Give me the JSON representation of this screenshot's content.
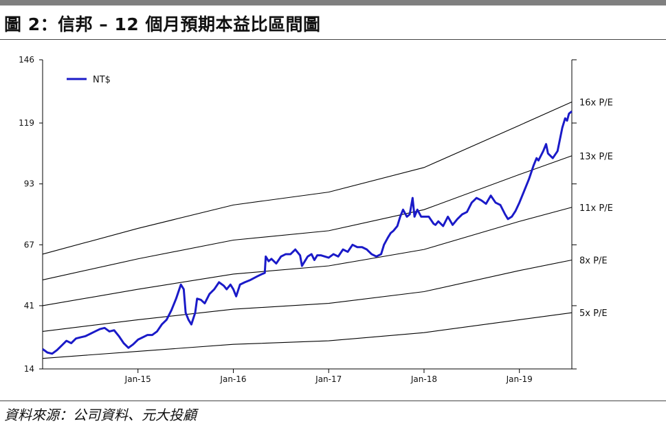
{
  "header": {
    "title": "圖 2：信邦 – 12 個月預期本益比區間圖"
  },
  "footer": {
    "source": "資料來源：公司資料、元大投顧"
  },
  "colors": {
    "series_line": "#1a1ac8",
    "band_line": "#000000",
    "top_bar": "#7f7f7f"
  },
  "chart_data": {
    "type": "line",
    "ylim": [
      14,
      146
    ],
    "yticks": [
      "146",
      "119",
      "93",
      "67",
      "41",
      "14"
    ],
    "xticks": [
      {
        "label": "Jan-15",
        "t": 2015.0
      },
      {
        "label": "Jan-16",
        "t": 2016.0
      },
      {
        "label": "Jan-17",
        "t": 2017.0
      },
      {
        "label": "Jan-18",
        "t": 2018.0
      },
      {
        "label": "Jan-19",
        "t": 2019.0
      }
    ],
    "xlim": [
      2014.0,
      2019.55
    ],
    "legend": {
      "label": "NT$",
      "placement": "top-left"
    },
    "series": [
      {
        "name": "NT$",
        "points": [
          [
            2014.0,
            22.5
          ],
          [
            2014.05,
            21.0
          ],
          [
            2014.1,
            20.5
          ],
          [
            2014.15,
            22.0
          ],
          [
            2014.2,
            24.0
          ],
          [
            2014.25,
            26.0
          ],
          [
            2014.3,
            25.0
          ],
          [
            2014.35,
            27.0
          ],
          [
            2014.4,
            27.5
          ],
          [
            2014.45,
            28.0
          ],
          [
            2014.5,
            29.0
          ],
          [
            2014.55,
            30.0
          ],
          [
            2014.6,
            31.0
          ],
          [
            2014.65,
            31.5
          ],
          [
            2014.7,
            30.0
          ],
          [
            2014.75,
            30.5
          ],
          [
            2014.8,
            28.0
          ],
          [
            2014.85,
            25.0
          ],
          [
            2014.9,
            23.0
          ],
          [
            2014.95,
            24.5
          ],
          [
            2015.0,
            26.5
          ],
          [
            2015.05,
            27.5
          ],
          [
            2015.1,
            28.5
          ],
          [
            2015.15,
            28.5
          ],
          [
            2015.2,
            30.0
          ],
          [
            2015.25,
            33.0
          ],
          [
            2015.3,
            35.0
          ],
          [
            2015.35,
            39.0
          ],
          [
            2015.4,
            44.0
          ],
          [
            2015.45,
            50.0
          ],
          [
            2015.48,
            48.0
          ],
          [
            2015.5,
            38.0
          ],
          [
            2015.53,
            35.0
          ],
          [
            2015.56,
            33.0
          ],
          [
            2015.6,
            38.0
          ],
          [
            2015.62,
            44.0
          ],
          [
            2015.66,
            43.5
          ],
          [
            2015.7,
            42.0
          ],
          [
            2015.75,
            46.0
          ],
          [
            2015.8,
            48.0
          ],
          [
            2015.85,
            51.0
          ],
          [
            2015.9,
            49.5
          ],
          [
            2015.93,
            48.0
          ],
          [
            2015.97,
            50.0
          ],
          [
            2016.0,
            48.0
          ],
          [
            2016.03,
            45.0
          ],
          [
            2016.07,
            50.0
          ],
          [
            2016.12,
            51.0
          ],
          [
            2016.18,
            52.0
          ],
          [
            2016.25,
            53.5
          ],
          [
            2016.3,
            54.5
          ],
          [
            2016.33,
            55.0
          ],
          [
            2016.34,
            62.0
          ],
          [
            2016.37,
            60.0
          ],
          [
            2016.4,
            61.0
          ],
          [
            2016.45,
            59.0
          ],
          [
            2016.5,
            62.0
          ],
          [
            2016.55,
            63.0
          ],
          [
            2016.6,
            63.0
          ],
          [
            2016.65,
            65.0
          ],
          [
            2016.7,
            62.5
          ],
          [
            2016.72,
            58.0
          ],
          [
            2016.75,
            60.0
          ],
          [
            2016.78,
            62.0
          ],
          [
            2016.82,
            63.0
          ],
          [
            2016.85,
            60.5
          ],
          [
            2016.88,
            62.5
          ],
          [
            2016.92,
            62.5
          ],
          [
            2017.0,
            61.5
          ],
          [
            2017.05,
            63.0
          ],
          [
            2017.1,
            62.0
          ],
          [
            2017.15,
            65.0
          ],
          [
            2017.2,
            64.0
          ],
          [
            2017.25,
            67.0
          ],
          [
            2017.3,
            66.0
          ],
          [
            2017.35,
            66.0
          ],
          [
            2017.4,
            65.0
          ],
          [
            2017.45,
            63.0
          ],
          [
            2017.5,
            62.0
          ],
          [
            2017.55,
            63.0
          ],
          [
            2017.58,
            67.0
          ],
          [
            2017.62,
            70.0
          ],
          [
            2017.65,
            72.0
          ],
          [
            2017.68,
            73.0
          ],
          [
            2017.72,
            75.0
          ],
          [
            2017.75,
            79.0
          ],
          [
            2017.78,
            82.0
          ],
          [
            2017.82,
            79.0
          ],
          [
            2017.85,
            80.0
          ],
          [
            2017.88,
            87.0
          ],
          [
            2017.9,
            79.0
          ],
          [
            2017.93,
            82.0
          ],
          [
            2017.97,
            79.0
          ],
          [
            2018.0,
            79.0
          ],
          [
            2018.05,
            79.0
          ],
          [
            2018.1,
            76.0
          ],
          [
            2018.12,
            75.5
          ],
          [
            2018.15,
            77.0
          ],
          [
            2018.2,
            75.0
          ],
          [
            2018.25,
            79.0
          ],
          [
            2018.3,
            75.5
          ],
          [
            2018.35,
            78.0
          ],
          [
            2018.4,
            80.0
          ],
          [
            2018.45,
            81.0
          ],
          [
            2018.5,
            85.0
          ],
          [
            2018.55,
            87.0
          ],
          [
            2018.6,
            86.0
          ],
          [
            2018.65,
            84.5
          ],
          [
            2018.7,
            88.0
          ],
          [
            2018.75,
            85.0
          ],
          [
            2018.8,
            84.0
          ],
          [
            2018.85,
            80.0
          ],
          [
            2018.88,
            78.0
          ],
          [
            2018.92,
            79.0
          ],
          [
            2018.96,
            81.5
          ],
          [
            2019.0,
            85.0
          ],
          [
            2019.05,
            90.0
          ],
          [
            2019.1,
            95.0
          ],
          [
            2019.15,
            101.0
          ],
          [
            2019.18,
            104.0
          ],
          [
            2019.2,
            103.0
          ],
          [
            2019.25,
            107.0
          ],
          [
            2019.28,
            110.0
          ],
          [
            2019.3,
            106.0
          ],
          [
            2019.35,
            104.0
          ],
          [
            2019.4,
            107.0
          ],
          [
            2019.45,
            117.0
          ],
          [
            2019.48,
            121.0
          ],
          [
            2019.5,
            120.0
          ],
          [
            2019.52,
            123.0
          ],
          [
            2019.55,
            124.0
          ]
        ]
      }
    ],
    "bands": [
      {
        "name": "16x P/E",
        "points": [
          [
            2014.0,
            63.0
          ],
          [
            2015.0,
            74.0
          ],
          [
            2016.0,
            84.0
          ],
          [
            2017.0,
            89.5
          ],
          [
            2018.0,
            100.0
          ],
          [
            2019.0,
            118.0
          ],
          [
            2019.55,
            128.0
          ]
        ]
      },
      {
        "name": "13x P/E",
        "points": [
          [
            2014.0,
            52.0
          ],
          [
            2015.0,
            61.0
          ],
          [
            2016.0,
            69.0
          ],
          [
            2017.0,
            73.0
          ],
          [
            2018.0,
            82.0
          ],
          [
            2019.0,
            97.0
          ],
          [
            2019.55,
            105.0
          ]
        ]
      },
      {
        "name": "11x P/E",
        "points": [
          [
            2014.0,
            41.0
          ],
          [
            2015.0,
            48.0
          ],
          [
            2016.0,
            54.5
          ],
          [
            2017.0,
            58.0
          ],
          [
            2018.0,
            65.0
          ],
          [
            2019.0,
            77.0
          ],
          [
            2019.55,
            83.0
          ]
        ]
      },
      {
        "name": "8x P/E",
        "points": [
          [
            2014.0,
            30.0
          ],
          [
            2015.0,
            35.0
          ],
          [
            2016.0,
            39.5
          ],
          [
            2017.0,
            42.0
          ],
          [
            2018.0,
            47.0
          ],
          [
            2019.0,
            56.0
          ],
          [
            2019.55,
            60.5
          ]
        ]
      },
      {
        "name": "5x P/E",
        "points": [
          [
            2014.0,
            18.5
          ],
          [
            2015.0,
            21.5
          ],
          [
            2016.0,
            24.5
          ],
          [
            2017.0,
            26.0
          ],
          [
            2018.0,
            29.5
          ],
          [
            2019.0,
            35.0
          ],
          [
            2019.55,
            38.0
          ]
        ]
      }
    ]
  }
}
